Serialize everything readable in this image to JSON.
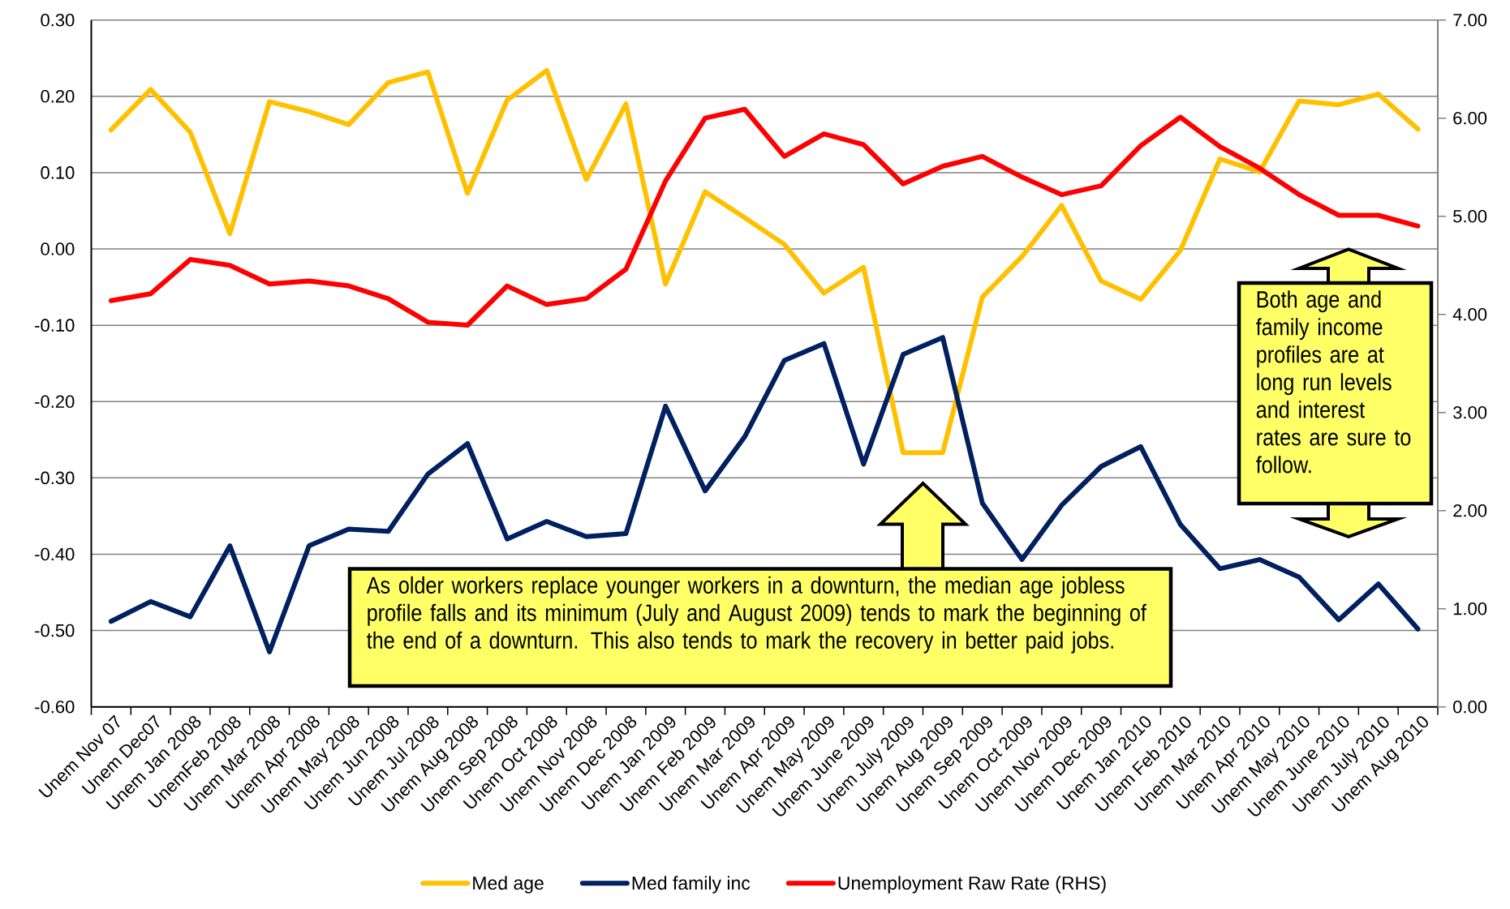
{
  "chart_data": {
    "type": "line",
    "categories": [
      "Unem Nov 07",
      "Unem Dec07",
      "Unem Jan 2008",
      "UnemFeb 2008",
      "Unem Mar 2008",
      "Unem Apr 2008",
      "Unem May 2008",
      "Unem Jun 2008",
      "Unem Jul 2008",
      "Unem Aug 2008",
      "Unem Sep 2008",
      "Unem Oct 2008",
      "Unem Nov 2008",
      "Unem Dec 2008",
      "Unem Jan 2009",
      "Unem Feb 2009",
      "Unem Mar 2009",
      "Unem Apr 2009",
      "Unem May 2009",
      "Unem June 2009",
      "Unem July 2009",
      "Unem Aug 2009",
      "Unem Sep 2009",
      "Unem Oct 2009",
      "Unem Nov 2009",
      "Unem Dec 2009",
      "Unem Jan 2010",
      "Unem Feb 2010",
      "Unem Mar 2010",
      "Unem Apr 2010",
      "Unem May 2010",
      "Unem June 2010",
      "Unem July 2010",
      "Unem Aug 2010"
    ],
    "series": [
      {
        "name": "Med age",
        "color": "#ffc000",
        "values": [
          0.156,
          0.209,
          0.153,
          0.02,
          0.193,
          0.18,
          0.163,
          0.218,
          0.232,
          0.073,
          0.195,
          0.234,
          0.091,
          0.19,
          -0.046,
          0.075,
          0.041,
          0.006,
          -0.058,
          -0.024,
          -0.267,
          -0.267,
          -0.063,
          -0.01,
          0.057,
          -0.042,
          -0.066,
          -0.002,
          0.118,
          0.101,
          0.194,
          0.189,
          0.203,
          0.157
        ]
      },
      {
        "name": "Med family inc",
        "color": "#002060",
        "values": [
          -0.488,
          -0.462,
          -0.482,
          -0.389,
          -0.528,
          -0.389,
          -0.367,
          -0.37,
          -0.295,
          -0.255,
          -0.38,
          -0.357,
          -0.377,
          -0.373,
          -0.206,
          -0.317,
          -0.246,
          -0.146,
          -0.124,
          -0.282,
          -0.138,
          -0.116,
          -0.333,
          -0.407,
          -0.336,
          -0.285,
          -0.259,
          -0.361,
          -0.419,
          -0.407,
          -0.43,
          -0.486,
          -0.439,
          -0.498
        ]
      },
      {
        "name": "Unemployment Raw Rate (RHS)",
        "color": "#ff0000",
        "axis": "y2",
        "values": [
          4.14,
          4.21,
          4.56,
          4.5,
          4.31,
          4.34,
          4.29,
          4.16,
          3.92,
          3.89,
          4.29,
          4.1,
          4.16,
          4.46,
          5.36,
          6.0,
          6.09,
          5.61,
          5.84,
          5.73,
          5.33,
          5.51,
          5.61,
          5.4,
          5.22,
          5.31,
          5.72,
          6.01,
          5.71,
          5.49,
          5.22,
          5.01,
          5.01,
          4.9
        ]
      }
    ],
    "ylim": [
      -0.6,
      0.3
    ],
    "yticks": [
      {
        "value": -0.6,
        "label": "-0.60"
      },
      {
        "value": -0.5,
        "label": "-0.50"
      },
      {
        "value": -0.4,
        "label": "-0.40"
      },
      {
        "value": -0.3,
        "label": "-0.30"
      },
      {
        "value": -0.2,
        "label": "-0.20"
      },
      {
        "value": -0.1,
        "label": "-0.10"
      },
      {
        "value": 0,
        "label": "0.00"
      },
      {
        "value": 0.1,
        "label": "0.10"
      },
      {
        "value": 0.2,
        "label": "0.20"
      },
      {
        "value": 0.3,
        "label": "0.30"
      }
    ],
    "y2lim": [
      0,
      7
    ],
    "y2ticks": [
      {
        "value": 0,
        "label": "0.00"
      },
      {
        "value": 1,
        "label": "1.00"
      },
      {
        "value": 2,
        "label": "2.00"
      },
      {
        "value": 3,
        "label": "3.00"
      },
      {
        "value": 4,
        "label": "4.00"
      },
      {
        "value": 5,
        "label": "5.00"
      },
      {
        "value": 6,
        "label": "6.00"
      },
      {
        "value": 7,
        "label": "7.00"
      }
    ],
    "grid": "y",
    "legend": "bottom",
    "annotations": [
      "As older workers replace younger workers in a downturn, the median age jobless profile falls and its minimum (July and August 2009) tends to mark the beginning of the end of a downturn. This also tends to mark the recovery in better paid jobs.",
      "Both age and family income profiles are at long run levels and interest rates are sure to follow."
    ]
  }
}
